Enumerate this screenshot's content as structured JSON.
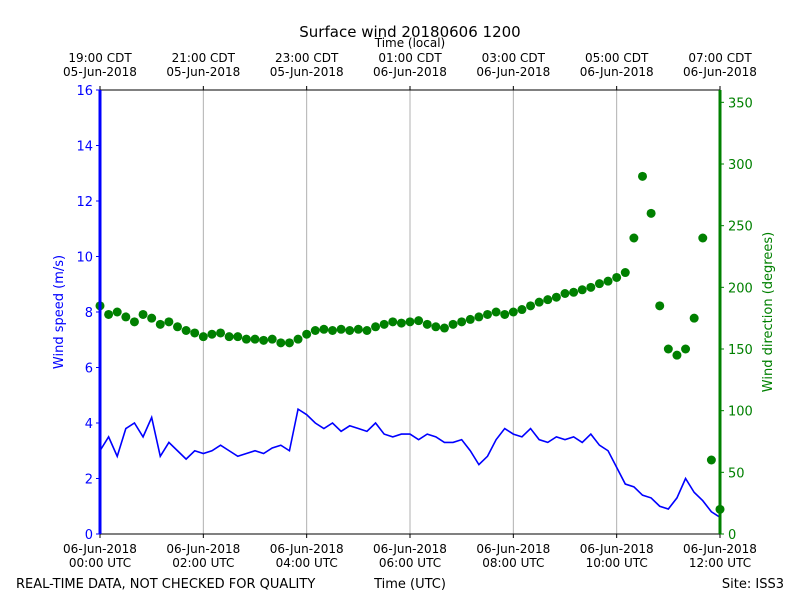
{
  "chart_data": {
    "type": "line",
    "title": "Surface wind 20180606 1200",
    "top_axis_label": "Time (local)",
    "x_label": "Time (UTC)",
    "y_label": "Wind speed (m/s)",
    "y2_label": "Wind direction (degrees)",
    "footer_left": "REAL-TIME DATA, NOT CHECKED FOR QUALITY",
    "footer_right": "Site: ISS3",
    "xlim": [
      "2018-06-06 00:00",
      "2018-06-06 12:00"
    ],
    "xticks": [
      {
        "value": "2018-06-06 00:00",
        "label": "06-Jun-2018\n00:00 UTC"
      },
      {
        "value": "2018-06-06 02:00",
        "label": "06-Jun-2018\n02:00 UTC"
      },
      {
        "value": "2018-06-06 04:00",
        "label": "06-Jun-2018\n04:00 UTC"
      },
      {
        "value": "2018-06-06 06:00",
        "label": "06-Jun-2018\n06:00 UTC"
      },
      {
        "value": "2018-06-06 08:00",
        "label": "06-Jun-2018\n08:00 UTC"
      },
      {
        "value": "2018-06-06 10:00",
        "label": "06-Jun-2018\n10:00 UTC"
      },
      {
        "value": "2018-06-06 12:00",
        "label": "06-Jun-2018\n12:00 UTC"
      }
    ],
    "top_xticks": [
      {
        "value": "2018-06-06 00:00",
        "label": "19:00 CDT\n05-Jun-2018"
      },
      {
        "value": "2018-06-06 02:00",
        "label": "21:00 CDT\n05-Jun-2018"
      },
      {
        "value": "2018-06-06 04:00",
        "label": "23:00 CDT\n05-Jun-2018"
      },
      {
        "value": "2018-06-06 06:00",
        "label": "01:00 CDT\n06-Jun-2018"
      },
      {
        "value": "2018-06-06 08:00",
        "label": "03:00 CDT\n06-Jun-2018"
      },
      {
        "value": "2018-06-06 10:00",
        "label": "05:00 CDT\n06-Jun-2018"
      },
      {
        "value": "2018-06-06 12:00",
        "label": "07:00 CDT\n06-Jun-2018"
      }
    ],
    "ylim": [
      0,
      16
    ],
    "yticks": [
      0,
      2,
      4,
      6,
      8,
      10,
      12,
      14,
      16
    ],
    "y2lim": [
      0,
      360
    ],
    "y2ticks": [
      0,
      50,
      100,
      150,
      200,
      250,
      300,
      350
    ],
    "grid": "x",
    "y_color": "blue",
    "y2_color": "green",
    "x": [
      "2018-06-06 00:00",
      "2018-06-06 00:10",
      "2018-06-06 00:20",
      "2018-06-06 00:30",
      "2018-06-06 00:40",
      "2018-06-06 00:50",
      "2018-06-06 01:00",
      "2018-06-06 01:10",
      "2018-06-06 01:20",
      "2018-06-06 01:30",
      "2018-06-06 01:40",
      "2018-06-06 01:50",
      "2018-06-06 02:00",
      "2018-06-06 02:10",
      "2018-06-06 02:20",
      "2018-06-06 02:30",
      "2018-06-06 02:40",
      "2018-06-06 02:50",
      "2018-06-06 03:00",
      "2018-06-06 03:10",
      "2018-06-06 03:20",
      "2018-06-06 03:30",
      "2018-06-06 03:40",
      "2018-06-06 03:50",
      "2018-06-06 04:00",
      "2018-06-06 04:10",
      "2018-06-06 04:20",
      "2018-06-06 04:30",
      "2018-06-06 04:40",
      "2018-06-06 04:50",
      "2018-06-06 05:00",
      "2018-06-06 05:10",
      "2018-06-06 05:20",
      "2018-06-06 05:30",
      "2018-06-06 05:40",
      "2018-06-06 05:50",
      "2018-06-06 06:00",
      "2018-06-06 06:10",
      "2018-06-06 06:20",
      "2018-06-06 06:30",
      "2018-06-06 06:40",
      "2018-06-06 06:50",
      "2018-06-06 07:00",
      "2018-06-06 07:10",
      "2018-06-06 07:20",
      "2018-06-06 07:30",
      "2018-06-06 07:40",
      "2018-06-06 07:50",
      "2018-06-06 08:00",
      "2018-06-06 08:10",
      "2018-06-06 08:20",
      "2018-06-06 08:30",
      "2018-06-06 08:40",
      "2018-06-06 08:50",
      "2018-06-06 09:00",
      "2018-06-06 09:10",
      "2018-06-06 09:20",
      "2018-06-06 09:30",
      "2018-06-06 09:40",
      "2018-06-06 09:50",
      "2018-06-06 10:00",
      "2018-06-06 10:10",
      "2018-06-06 10:20",
      "2018-06-06 10:30",
      "2018-06-06 10:40",
      "2018-06-06 10:50",
      "2018-06-06 11:00",
      "2018-06-06 11:10",
      "2018-06-06 11:20",
      "2018-06-06 11:30",
      "2018-06-06 11:40",
      "2018-06-06 11:50",
      "2018-06-06 12:00"
    ],
    "series": [
      {
        "type": "line",
        "color": "blue",
        "values": [
          3.0,
          3.5,
          2.8,
          3.8,
          4.0,
          3.5,
          4.2,
          2.8,
          3.3,
          3.0,
          2.7,
          3.0,
          2.9,
          3.0,
          3.2,
          3.0,
          2.8,
          2.9,
          3.0,
          2.9,
          3.1,
          3.2,
          3.0,
          4.5,
          4.3,
          4.0,
          3.8,
          4.0,
          3.7,
          3.9,
          3.8,
          3.7,
          4.0,
          3.6,
          3.5,
          3.6,
          3.6,
          3.4,
          3.6,
          3.5,
          3.3,
          3.3,
          3.4,
          3.0,
          2.5,
          2.8,
          3.4,
          3.8,
          3.6,
          3.5,
          3.8,
          3.4,
          3.3,
          3.5,
          3.4,
          3.5,
          3.3,
          3.6,
          3.2,
          3.0,
          2.4,
          1.8,
          1.7,
          1.4,
          1.3,
          1.0,
          0.9,
          1.3,
          2.0,
          1.5,
          1.2,
          0.8,
          0.6
        ]
      },
      {
        "type": "scatter",
        "color": "green",
        "axis": "y2",
        "values": [
          185,
          178,
          180,
          176,
          172,
          178,
          175,
          170,
          172,
          168,
          165,
          163,
          160,
          162,
          163,
          160,
          160,
          158,
          158,
          157,
          158,
          155,
          155,
          158,
          162,
          165,
          166,
          165,
          166,
          165,
          166,
          165,
          168,
          170,
          172,
          171,
          172,
          173,
          170,
          168,
          167,
          170,
          172,
          174,
          176,
          178,
          180,
          178,
          180,
          182,
          185,
          188,
          190,
          192,
          195,
          196,
          198,
          200,
          203,
          205,
          208,
          212,
          240,
          290,
          260,
          185,
          150,
          145,
          150,
          175,
          240,
          60,
          20
        ]
      }
    ]
  }
}
